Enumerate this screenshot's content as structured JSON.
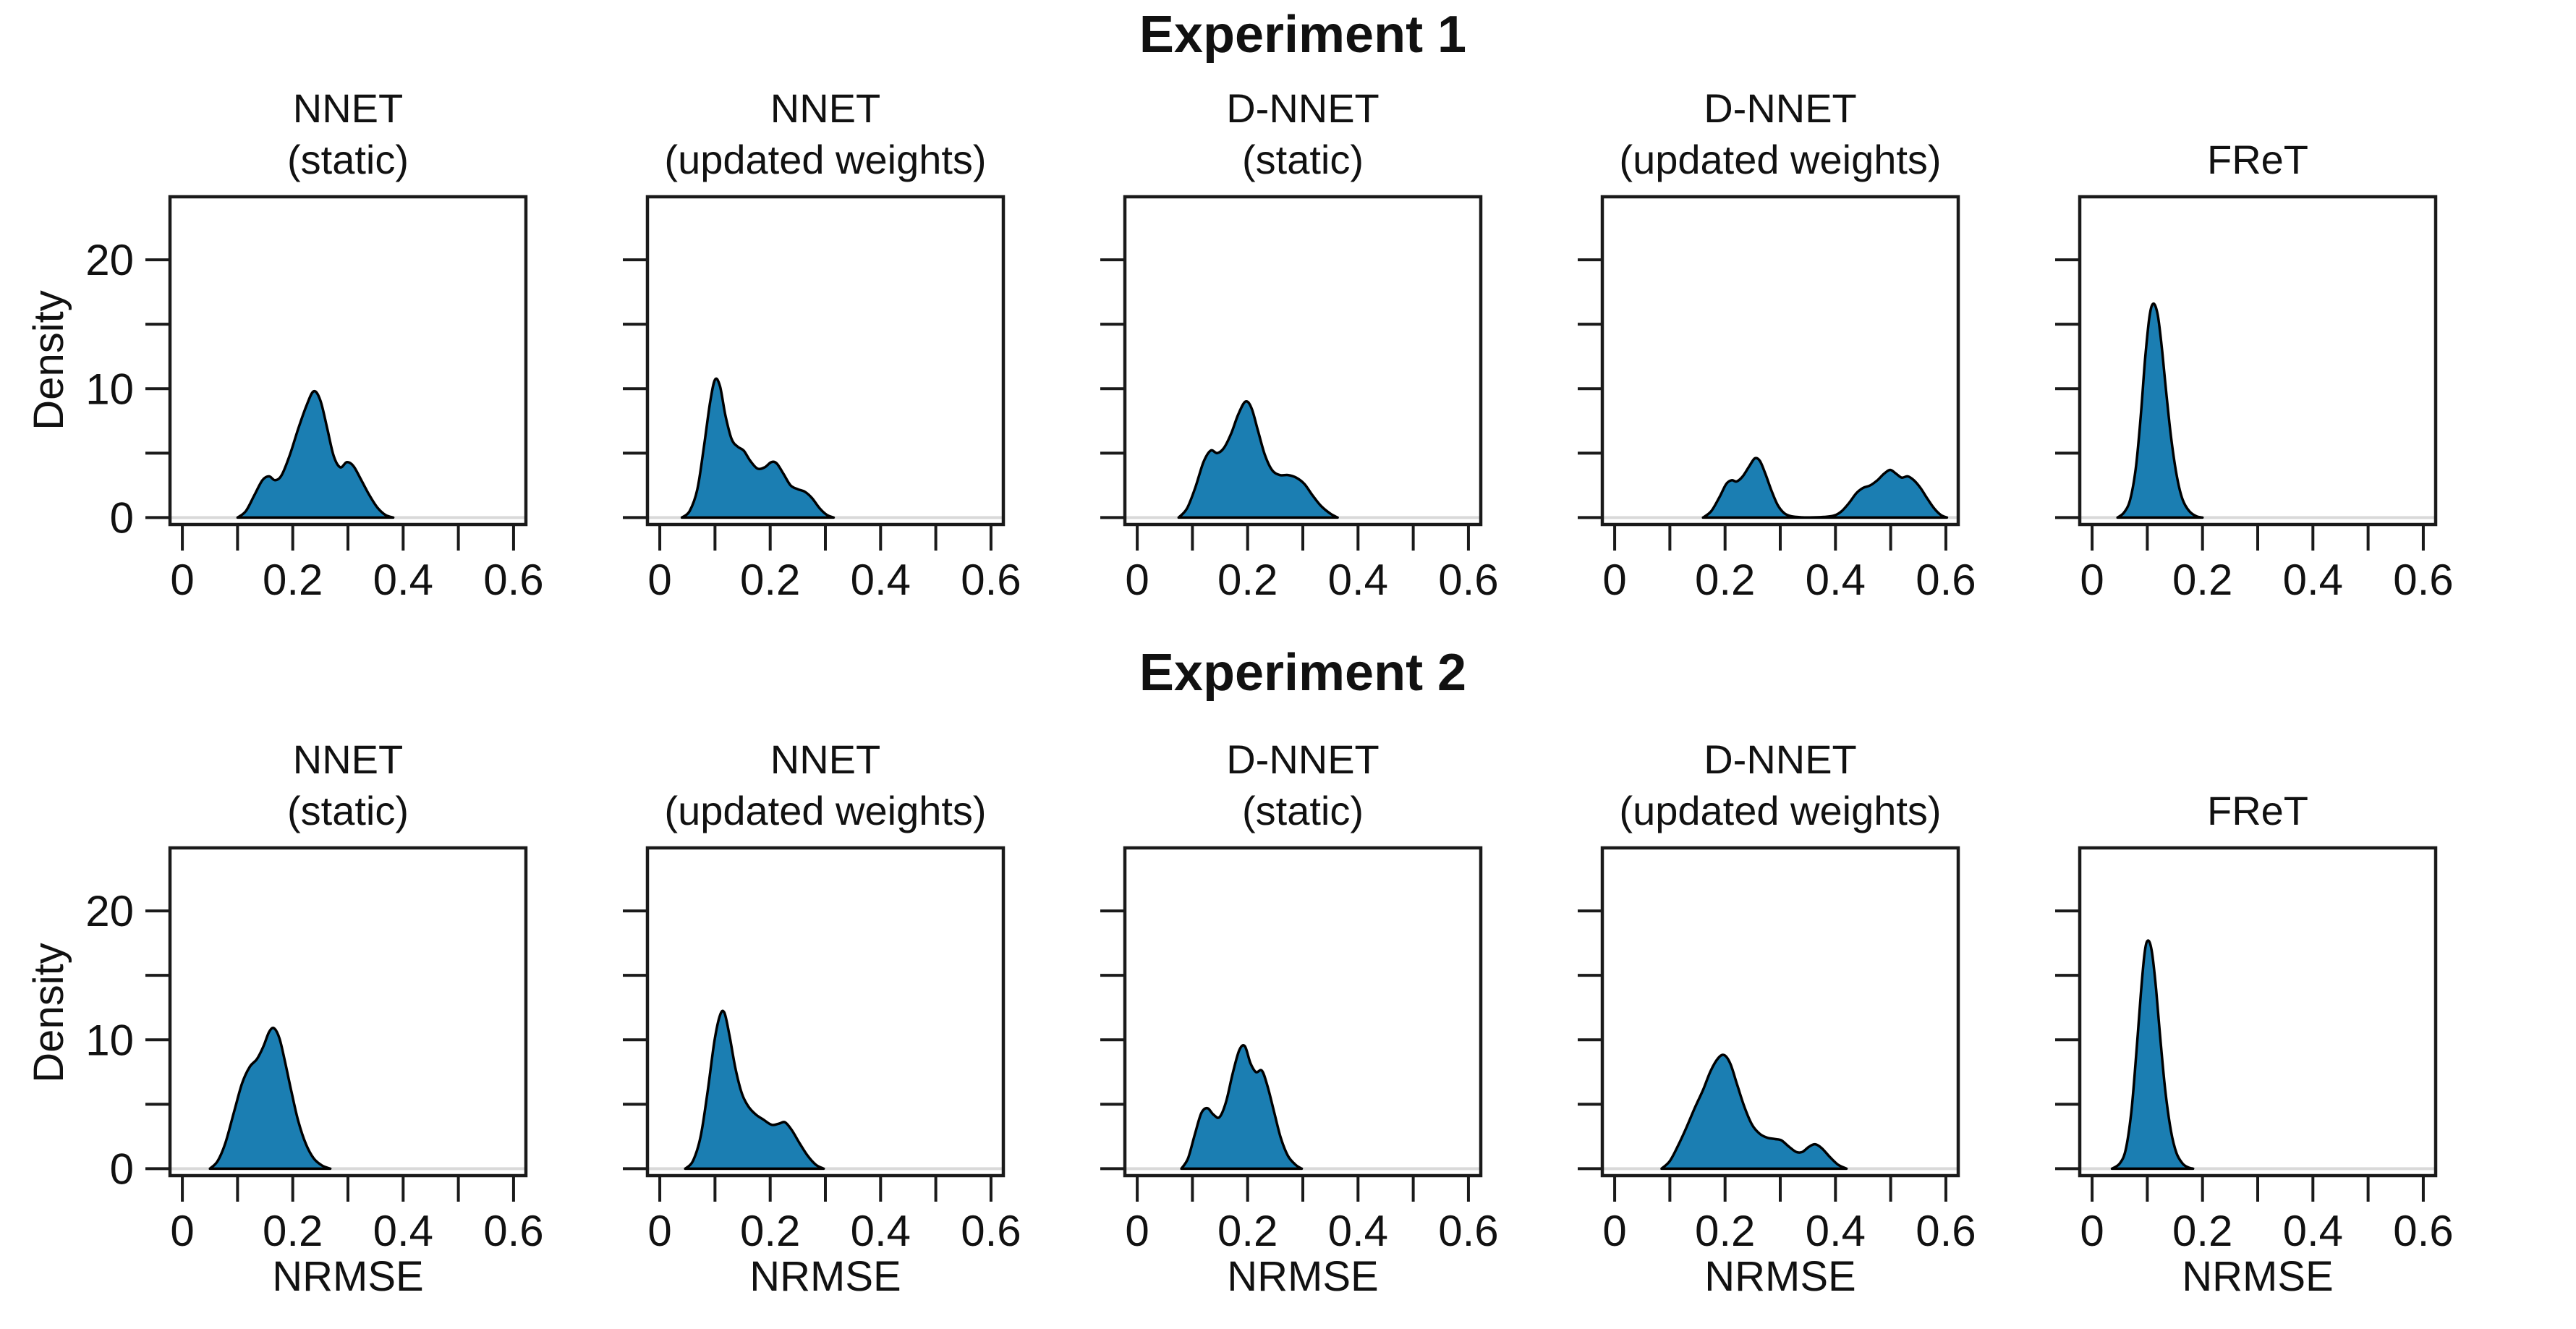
{
  "figure": {
    "row_titles": [
      "Experiment 1",
      "Experiment 2"
    ],
    "ylabel": "Density",
    "xlabel": "NRMSE",
    "colors": {
      "fill": "#1b7eb2",
      "stroke": "#000000",
      "zero_line": "#d9d9d9",
      "axis": "#1a1a1a"
    },
    "axes": {
      "xlim": [
        -0.025,
        0.625
      ],
      "ylim": [
        -0.65,
        25.0
      ],
      "xticks": [
        0,
        0.1,
        0.2,
        0.3,
        0.4,
        0.5,
        0.6
      ],
      "xtick_labels": [
        "0",
        "",
        "0.2",
        "",
        "0.4",
        "",
        "0.6"
      ],
      "yticks": [
        0,
        5,
        10,
        15,
        20
      ],
      "ytick_labels": [
        "0",
        "",
        "10",
        "",
        "20"
      ]
    }
  },
  "chart_data": [
    {
      "type": "area",
      "experiment": "Experiment 1",
      "title": "NNET",
      "subtitle": "(static)",
      "xlabel": "",
      "ylabel": "Density",
      "show_ytick_labels": true,
      "points": [
        [
          0.1,
          0
        ],
        [
          0.115,
          0.5
        ],
        [
          0.13,
          1.7
        ],
        [
          0.145,
          2.9
        ],
        [
          0.157,
          3.2
        ],
        [
          0.168,
          2.9
        ],
        [
          0.18,
          3.3
        ],
        [
          0.195,
          4.9
        ],
        [
          0.21,
          6.9
        ],
        [
          0.225,
          8.7
        ],
        [
          0.238,
          9.8
        ],
        [
          0.25,
          9.1
        ],
        [
          0.262,
          7.0
        ],
        [
          0.274,
          4.8
        ],
        [
          0.286,
          3.9
        ],
        [
          0.298,
          4.3
        ],
        [
          0.31,
          4.0
        ],
        [
          0.323,
          3.0
        ],
        [
          0.338,
          1.8
        ],
        [
          0.353,
          0.8
        ],
        [
          0.368,
          0.2
        ],
        [
          0.382,
          0
        ]
      ]
    },
    {
      "type": "area",
      "experiment": "Experiment 1",
      "title": "NNET",
      "subtitle": "(updated weights)",
      "xlabel": "",
      "ylabel": "",
      "show_ytick_labels": false,
      "points": [
        [
          0.04,
          0
        ],
        [
          0.054,
          0.5
        ],
        [
          0.068,
          2.2
        ],
        [
          0.08,
          5.5
        ],
        [
          0.091,
          8.9
        ],
        [
          0.1,
          10.7
        ],
        [
          0.109,
          10.2
        ],
        [
          0.119,
          7.9
        ],
        [
          0.13,
          6.1
        ],
        [
          0.141,
          5.5
        ],
        [
          0.152,
          5.2
        ],
        [
          0.164,
          4.4
        ],
        [
          0.177,
          3.8
        ],
        [
          0.19,
          3.9
        ],
        [
          0.202,
          4.3
        ],
        [
          0.212,
          4.2
        ],
        [
          0.224,
          3.4
        ],
        [
          0.237,
          2.5
        ],
        [
          0.25,
          2.2
        ],
        [
          0.263,
          2.0
        ],
        [
          0.276,
          1.5
        ],
        [
          0.29,
          0.7
        ],
        [
          0.303,
          0.2
        ],
        [
          0.315,
          0
        ]
      ]
    },
    {
      "type": "area",
      "experiment": "Experiment 1",
      "title": "D-NNET",
      "subtitle": "(static)",
      "xlabel": "",
      "ylabel": "",
      "show_ytick_labels": false,
      "points": [
        [
          0.075,
          0
        ],
        [
          0.09,
          0.7
        ],
        [
          0.105,
          2.3
        ],
        [
          0.12,
          4.3
        ],
        [
          0.133,
          5.2
        ],
        [
          0.145,
          5.0
        ],
        [
          0.157,
          5.4
        ],
        [
          0.17,
          6.5
        ],
        [
          0.183,
          8.0
        ],
        [
          0.196,
          9.0
        ],
        [
          0.207,
          8.5
        ],
        [
          0.219,
          6.7
        ],
        [
          0.231,
          4.9
        ],
        [
          0.244,
          3.7
        ],
        [
          0.258,
          3.3
        ],
        [
          0.273,
          3.3
        ],
        [
          0.288,
          3.1
        ],
        [
          0.303,
          2.6
        ],
        [
          0.318,
          1.7
        ],
        [
          0.333,
          0.9
        ],
        [
          0.35,
          0.3
        ],
        [
          0.363,
          0
        ]
      ]
    },
    {
      "type": "area",
      "experiment": "Experiment 1",
      "title": "D-NNET",
      "subtitle": "(updated weights)",
      "xlabel": "",
      "ylabel": "",
      "show_ytick_labels": false,
      "points": [
        [
          0.16,
          0
        ],
        [
          0.175,
          0.5
        ],
        [
          0.19,
          1.6
        ],
        [
          0.202,
          2.6
        ],
        [
          0.212,
          2.9
        ],
        [
          0.221,
          2.8
        ],
        [
          0.232,
          3.2
        ],
        [
          0.244,
          4.0
        ],
        [
          0.254,
          4.6
        ],
        [
          0.263,
          4.4
        ],
        [
          0.273,
          3.4
        ],
        [
          0.284,
          2.1
        ],
        [
          0.295,
          1.0
        ],
        [
          0.307,
          0.35
        ],
        [
          0.32,
          0.1
        ],
        [
          0.34,
          0.02
        ],
        [
          0.36,
          0.02
        ],
        [
          0.38,
          0.05
        ],
        [
          0.397,
          0.15
        ],
        [
          0.41,
          0.45
        ],
        [
          0.424,
          1.1
        ],
        [
          0.438,
          1.9
        ],
        [
          0.45,
          2.3
        ],
        [
          0.463,
          2.5
        ],
        [
          0.476,
          2.9
        ],
        [
          0.488,
          3.4
        ],
        [
          0.499,
          3.7
        ],
        [
          0.51,
          3.4
        ],
        [
          0.52,
          3.1
        ],
        [
          0.531,
          3.2
        ],
        [
          0.542,
          2.9
        ],
        [
          0.554,
          2.3
        ],
        [
          0.566,
          1.5
        ],
        [
          0.579,
          0.7
        ],
        [
          0.591,
          0.2
        ],
        [
          0.602,
          0
        ]
      ]
    },
    {
      "type": "area",
      "experiment": "Experiment 1",
      "title": "FReT",
      "subtitle": "",
      "xlabel": "",
      "ylabel": "",
      "show_ytick_labels": false,
      "points": [
        [
          0.046,
          0
        ],
        [
          0.058,
          0.4
        ],
        [
          0.069,
          1.4
        ],
        [
          0.079,
          3.8
        ],
        [
          0.088,
          7.8
        ],
        [
          0.096,
          12.3
        ],
        [
          0.104,
          15.6
        ],
        [
          0.111,
          16.6
        ],
        [
          0.119,
          15.7
        ],
        [
          0.127,
          12.9
        ],
        [
          0.135,
          9.4
        ],
        [
          0.144,
          5.9
        ],
        [
          0.154,
          3.1
        ],
        [
          0.164,
          1.4
        ],
        [
          0.176,
          0.5
        ],
        [
          0.189,
          0.1
        ],
        [
          0.2,
          0
        ]
      ]
    },
    {
      "type": "area",
      "experiment": "Experiment 2",
      "title": "NNET",
      "subtitle": "(static)",
      "xlabel": "NRMSE",
      "ylabel": "Density",
      "show_ytick_labels": true,
      "points": [
        [
          0.05,
          0
        ],
        [
          0.064,
          0.6
        ],
        [
          0.078,
          2.0
        ],
        [
          0.093,
          4.3
        ],
        [
          0.108,
          6.6
        ],
        [
          0.122,
          7.9
        ],
        [
          0.135,
          8.5
        ],
        [
          0.147,
          9.5
        ],
        [
          0.157,
          10.6
        ],
        [
          0.166,
          10.9
        ],
        [
          0.176,
          10.1
        ],
        [
          0.186,
          8.3
        ],
        [
          0.198,
          5.9
        ],
        [
          0.21,
          3.7
        ],
        [
          0.224,
          1.9
        ],
        [
          0.238,
          0.8
        ],
        [
          0.253,
          0.25
        ],
        [
          0.268,
          0
        ]
      ]
    },
    {
      "type": "area",
      "experiment": "Experiment 2",
      "title": "NNET",
      "subtitle": "(updated weights)",
      "xlabel": "NRMSE",
      "ylabel": "",
      "show_ytick_labels": false,
      "points": [
        [
          0.046,
          0
        ],
        [
          0.06,
          0.6
        ],
        [
          0.074,
          2.5
        ],
        [
          0.087,
          6.1
        ],
        [
          0.099,
          9.9
        ],
        [
          0.109,
          11.9
        ],
        [
          0.117,
          12.1
        ],
        [
          0.126,
          10.4
        ],
        [
          0.137,
          7.8
        ],
        [
          0.149,
          5.8
        ],
        [
          0.161,
          4.8
        ],
        [
          0.174,
          4.2
        ],
        [
          0.188,
          3.8
        ],
        [
          0.203,
          3.4
        ],
        [
          0.216,
          3.5
        ],
        [
          0.227,
          3.6
        ],
        [
          0.239,
          3.0
        ],
        [
          0.253,
          2.0
        ],
        [
          0.268,
          1.0
        ],
        [
          0.283,
          0.3
        ],
        [
          0.297,
          0
        ]
      ]
    },
    {
      "type": "area",
      "experiment": "Experiment 2",
      "title": "D-NNET",
      "subtitle": "(static)",
      "xlabel": "NRMSE",
      "ylabel": "",
      "show_ytick_labels": false,
      "points": [
        [
          0.08,
          0
        ],
        [
          0.092,
          0.8
        ],
        [
          0.104,
          2.6
        ],
        [
          0.116,
          4.3
        ],
        [
          0.127,
          4.7
        ],
        [
          0.138,
          4.2
        ],
        [
          0.149,
          4.0
        ],
        [
          0.161,
          5.2
        ],
        [
          0.173,
          7.4
        ],
        [
          0.185,
          9.2
        ],
        [
          0.195,
          9.5
        ],
        [
          0.205,
          8.2
        ],
        [
          0.215,
          7.5
        ],
        [
          0.226,
          7.6
        ],
        [
          0.236,
          6.4
        ],
        [
          0.248,
          4.4
        ],
        [
          0.26,
          2.4
        ],
        [
          0.273,
          1.0
        ],
        [
          0.287,
          0.3
        ],
        [
          0.298,
          0
        ]
      ]
    },
    {
      "type": "area",
      "experiment": "Experiment 2",
      "title": "D-NNET",
      "subtitle": "(updated weights)",
      "xlabel": "NRMSE",
      "ylabel": "",
      "show_ytick_labels": false,
      "points": [
        [
          0.085,
          0
        ],
        [
          0.1,
          0.6
        ],
        [
          0.115,
          1.8
        ],
        [
          0.13,
          3.2
        ],
        [
          0.145,
          4.7
        ],
        [
          0.16,
          6.1
        ],
        [
          0.174,
          7.6
        ],
        [
          0.188,
          8.6
        ],
        [
          0.199,
          8.8
        ],
        [
          0.21,
          8.1
        ],
        [
          0.222,
          6.5
        ],
        [
          0.235,
          4.8
        ],
        [
          0.249,
          3.4
        ],
        [
          0.263,
          2.7
        ],
        [
          0.277,
          2.4
        ],
        [
          0.29,
          2.3
        ],
        [
          0.302,
          2.2
        ],
        [
          0.316,
          1.7
        ],
        [
          0.329,
          1.3
        ],
        [
          0.34,
          1.3
        ],
        [
          0.352,
          1.7
        ],
        [
          0.363,
          1.9
        ],
        [
          0.375,
          1.6
        ],
        [
          0.39,
          0.9
        ],
        [
          0.405,
          0.3
        ],
        [
          0.42,
          0
        ]
      ]
    },
    {
      "type": "area",
      "experiment": "Experiment 2",
      "title": "FReT",
      "subtitle": "",
      "xlabel": "NRMSE",
      "ylabel": "",
      "show_ytick_labels": false,
      "points": [
        [
          0.036,
          0
        ],
        [
          0.05,
          0.4
        ],
        [
          0.061,
          1.5
        ],
        [
          0.071,
          4.4
        ],
        [
          0.08,
          8.9
        ],
        [
          0.088,
          13.4
        ],
        [
          0.095,
          16.7
        ],
        [
          0.101,
          17.7
        ],
        [
          0.108,
          16.9
        ],
        [
          0.116,
          13.9
        ],
        [
          0.124,
          9.9
        ],
        [
          0.133,
          5.9
        ],
        [
          0.143,
          2.9
        ],
        [
          0.153,
          1.2
        ],
        [
          0.164,
          0.4
        ],
        [
          0.174,
          0.1
        ],
        [
          0.183,
          0
        ]
      ]
    }
  ]
}
